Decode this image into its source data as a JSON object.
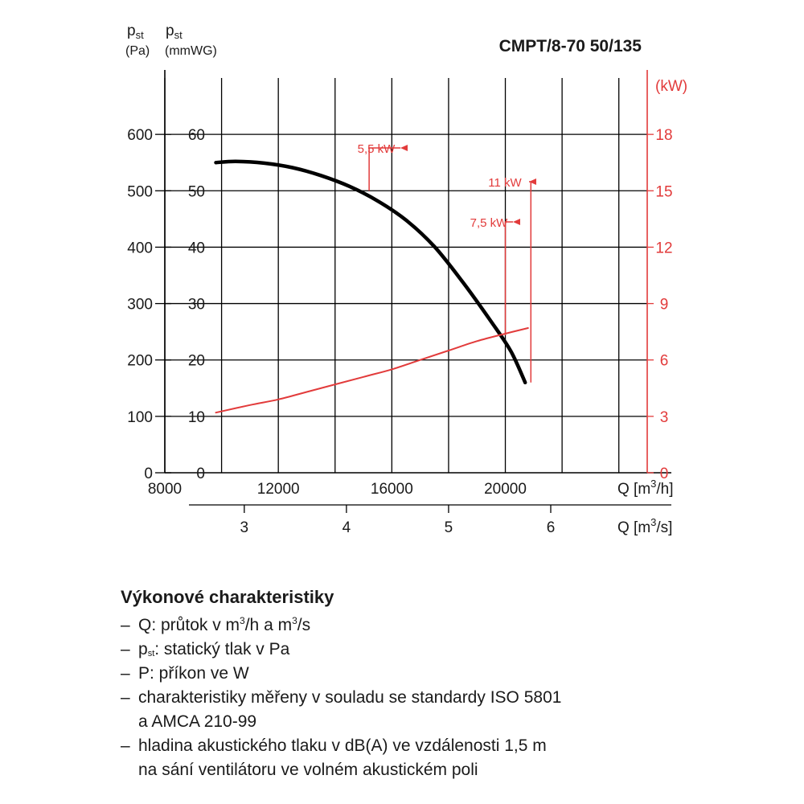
{
  "chart_data": {
    "type": "line",
    "title": "CMPT/8-70 50/135",
    "y_left_outer": {
      "label_main": "p",
      "label_sub": "st",
      "unit": "(Pa)",
      "ticks": [
        0,
        100,
        200,
        300,
        400,
        500,
        600
      ],
      "range": [
        0,
        700
      ]
    },
    "y_left_inner": {
      "label_main": "p",
      "label_sub": "st",
      "unit": "(mmWG)",
      "ticks": [
        0,
        10,
        20,
        30,
        40,
        50,
        60
      ],
      "range": [
        0,
        70
      ]
    },
    "y_right": {
      "unit": "(kW)",
      "ticks": [
        0,
        3,
        6,
        9,
        12,
        15,
        18
      ],
      "range": [
        0,
        21
      ],
      "color": "#e23b3b"
    },
    "x_top": {
      "label": "Q [m",
      "label_sup": "3",
      "label_end": "/h]",
      "ticks": [
        8000,
        12000,
        16000,
        20000
      ],
      "range": [
        8000,
        25000
      ]
    },
    "x_bottom": {
      "label": "Q [m",
      "label_sup": "3",
      "label_end": "/s]",
      "ticks": [
        3,
        4,
        5,
        6
      ]
    },
    "grid": true,
    "series": [
      {
        "axis": "pressure_pa",
        "color": "#000000",
        "x": [
          9800,
          10500,
          11500,
          12500,
          13500,
          14500,
          15500,
          16500,
          17500,
          18500,
          19500,
          20200,
          20700
        ],
        "y": [
          550,
          552,
          549,
          541,
          527,
          508,
          482,
          448,
          401,
          338,
          268,
          215,
          160
        ]
      },
      {
        "axis": "power_kw",
        "color": "#e23b3b",
        "x": [
          9800,
          11000,
          12000,
          13000,
          14000,
          15000,
          16000,
          17000,
          18000,
          19000,
          20000,
          20800
        ],
        "y": [
          3.2,
          3.6,
          3.9,
          4.3,
          4.7,
          5.1,
          5.5,
          6.0,
          6.5,
          7.0,
          7.4,
          7.7
        ]
      }
    ],
    "annotations": [
      {
        "text": "5,5 kW",
        "x": 15200,
        "y_pa": 500
      },
      {
        "text": "11 kW",
        "x": 20900,
        "y_pa": 160
      },
      {
        "text": "7,5 kW",
        "x": 20000,
        "y_pa": 244
      }
    ]
  },
  "legend": {
    "heading": "Výkonové charakteristiky",
    "item1_pre": "Q: průtok v m",
    "item1_sup": "3",
    "item1_mid": "/h a m",
    "item1_sup2": "3",
    "item1_end": "/s",
    "item2_pre": "p",
    "item2_sub": "st",
    "item2_end": ": statický tlak v Pa",
    "item3": "P: příkon ve W",
    "item4_line1": "charakteristiky měřeny v souladu se standardy ISO 5801",
    "item4_line2": "a AMCA 210-99",
    "item5_line1": "hladina akustického tlaku v dB(A) ve vzdálenosti 1,5 m",
    "item5_line2": "na sání ventilátoru ve volném akustickém poli"
  }
}
